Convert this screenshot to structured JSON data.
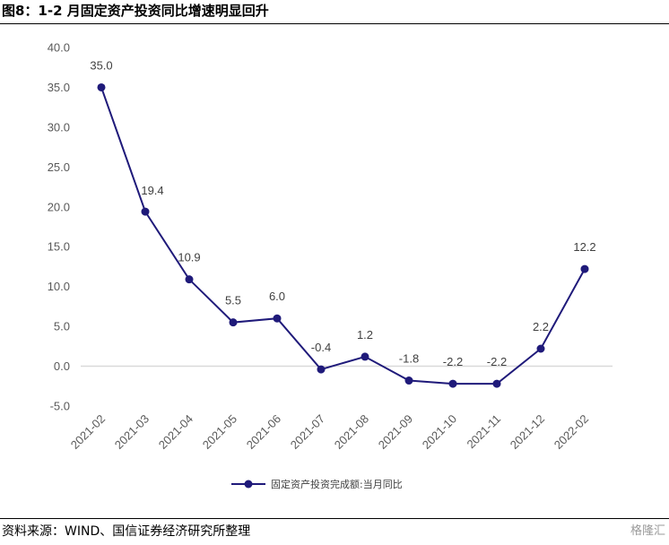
{
  "figure": {
    "title": "图8：1-2 月固定资产投资同比增速明显回升",
    "source": "资料来源：WIND、国信证券经济研究所整理",
    "watermark": "格隆汇"
  },
  "chart_data": {
    "type": "line",
    "categories": [
      "2021-02",
      "2021-03",
      "2021-04",
      "2021-05",
      "2021-06",
      "2021-07",
      "2021-08",
      "2021-09",
      "2021-10",
      "2021-11",
      "2021-12",
      "2022-02"
    ],
    "series": [
      {
        "name": "固定资产投资完成额:当月同比",
        "values": [
          35.0,
          19.4,
          10.9,
          5.5,
          6.0,
          -0.4,
          1.2,
          -1.8,
          -2.2,
          -2.2,
          2.2,
          12.2
        ],
        "labels": [
          "35.0",
          "19.4",
          "10.9",
          "5.5",
          "6.0",
          "-0.4",
          "1.2",
          "-1.8",
          "-2.2",
          "-2.2",
          "2.2",
          "12.2"
        ]
      }
    ],
    "yticks": [
      "40.0",
      "35.0",
      "30.0",
      "25.0",
      "20.0",
      "15.0",
      "10.0",
      "5.0",
      "0.0",
      "-5.0"
    ],
    "ylim": [
      -5,
      40
    ],
    "title": "",
    "xlabel": "",
    "ylabel": "",
    "legend_position": "bottom-center",
    "grid": false,
    "colors": {
      "line": "#1f1a7a",
      "zero_line": "#d9d9d9"
    }
  }
}
